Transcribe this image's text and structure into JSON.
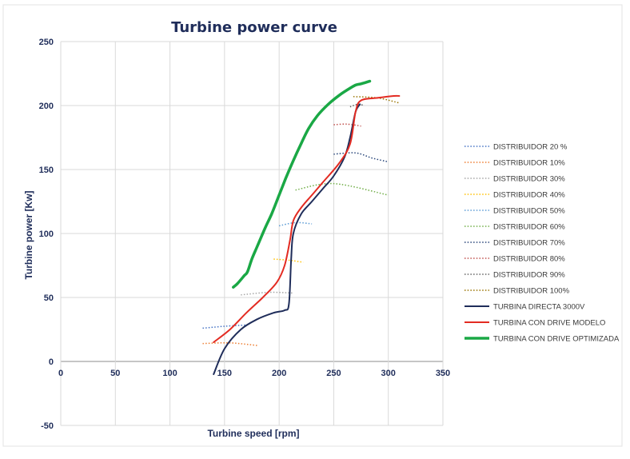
{
  "chart_data": {
    "type": "line",
    "title": "Turbine power curve",
    "xlabel": "Turbine speed [rpm]",
    "ylabel": "Turbine power [Kw]",
    "xlim": [
      0,
      350
    ],
    "ylim": [
      -50,
      250
    ],
    "x_ticks": [
      0,
      50,
      100,
      150,
      200,
      250,
      300,
      350
    ],
    "y_ticks": [
      250,
      200,
      150,
      100,
      50,
      0,
      -50
    ],
    "grid": true,
    "legend_position": "right",
    "series": [
      {
        "name": "DISTRIBUIDOR 20 %",
        "color": "#4472c4",
        "style": "dotted",
        "points": [
          [
            130,
            26
          ],
          [
            150,
            27.5
          ],
          [
            170,
            28.5
          ]
        ]
      },
      {
        "name": "DISTRIBUIDOR 10%",
        "color": "#ed7d31",
        "style": "dotted",
        "points": [
          [
            130,
            14
          ],
          [
            155,
            14.5
          ],
          [
            180,
            12.5
          ]
        ]
      },
      {
        "name": "DISTRIBUIDOR 30%",
        "color": "#a5a5a5",
        "style": "dotted",
        "points": [
          [
            165,
            52
          ],
          [
            190,
            54
          ],
          [
            212,
            53.5
          ]
        ]
      },
      {
        "name": "DISTRIBUIDOR 40%",
        "color": "#ffc000",
        "style": "dotted",
        "points": [
          [
            195,
            80
          ],
          [
            210,
            79
          ],
          [
            222,
            77.5
          ]
        ]
      },
      {
        "name": "DISTRIBUIDOR 50%",
        "color": "#5b9bd5",
        "style": "dotted",
        "points": [
          [
            200,
            106
          ],
          [
            215,
            108.5
          ],
          [
            230,
            107.5
          ]
        ]
      },
      {
        "name": "DISTRIBUIDOR 60%",
        "color": "#70ad47",
        "style": "dotted",
        "points": [
          [
            215,
            134
          ],
          [
            250,
            139
          ],
          [
            300,
            130
          ]
        ]
      },
      {
        "name": "DISTRIBUIDOR 70%",
        "color": "#264478",
        "style": "dotted",
        "points": [
          [
            250,
            162
          ],
          [
            270,
            163
          ],
          [
            285,
            159
          ],
          [
            300,
            156
          ]
        ]
      },
      {
        "name": "DISTRIBUIDOR 80%",
        "color": "#c0504d",
        "style": "dotted",
        "points": [
          [
            250,
            185
          ],
          [
            262,
            185.5
          ],
          [
            275,
            184
          ]
        ]
      },
      {
        "name": "DISTRIBUIDOR 90%",
        "color": "#636363",
        "style": "dotted",
        "points": [
          [
            265,
            199
          ],
          [
            272,
            201
          ],
          [
            278,
            200
          ]
        ]
      },
      {
        "name": "DISTRIBUIDOR 100%",
        "color": "#997300",
        "style": "dotted",
        "points": [
          [
            268,
            207
          ],
          [
            290,
            206
          ],
          [
            310,
            202
          ]
        ]
      },
      {
        "name": "TURBINA DIRECTA 3000V",
        "color": "#1f2d5a",
        "style": "solid",
        "points": [
          [
            140,
            -10
          ],
          [
            150,
            10
          ],
          [
            165,
            25
          ],
          [
            180,
            33
          ],
          [
            195,
            38
          ],
          [
            205,
            40
          ],
          [
            209,
            45
          ],
          [
            211,
            80
          ],
          [
            213,
            100
          ],
          [
            220,
            115
          ],
          [
            230,
            125
          ],
          [
            240,
            135
          ],
          [
            250,
            145
          ],
          [
            260,
            160
          ],
          [
            265,
            175
          ],
          [
            270,
            195
          ],
          [
            274,
            201
          ]
        ]
      },
      {
        "name": "TURBINA CON DRIVE MODELO",
        "color": "#e32b22",
        "style": "solid",
        "points": [
          [
            140,
            15
          ],
          [
            155,
            25
          ],
          [
            170,
            38
          ],
          [
            185,
            50
          ],
          [
            198,
            62
          ],
          [
            205,
            75
          ],
          [
            210,
            95
          ],
          [
            213,
            110
          ],
          [
            220,
            120
          ],
          [
            230,
            130
          ],
          [
            240,
            140
          ],
          [
            255,
            155
          ],
          [
            265,
            170
          ],
          [
            270,
            195
          ],
          [
            275,
            204
          ],
          [
            290,
            206
          ],
          [
            305,
            207.5
          ],
          [
            310,
            207.5
          ]
        ]
      },
      {
        "name": "TURBINA CON DRIVE OPTIMIZADA",
        "color": "#1aa845",
        "style": "solid",
        "points": [
          [
            158,
            58
          ],
          [
            162,
            61
          ],
          [
            168,
            67
          ],
          [
            171,
            70
          ],
          [
            175,
            80
          ],
          [
            180,
            90
          ],
          [
            187,
            104
          ],
          [
            193,
            115
          ],
          [
            200,
            130
          ],
          [
            206,
            143
          ],
          [
            213,
            157
          ],
          [
            220,
            170
          ],
          [
            227,
            182
          ],
          [
            235,
            192
          ],
          [
            245,
            201
          ],
          [
            255,
            208
          ],
          [
            262,
            212
          ],
          [
            270,
            216
          ],
          [
            275,
            217
          ],
          [
            283,
            219
          ]
        ]
      }
    ]
  }
}
